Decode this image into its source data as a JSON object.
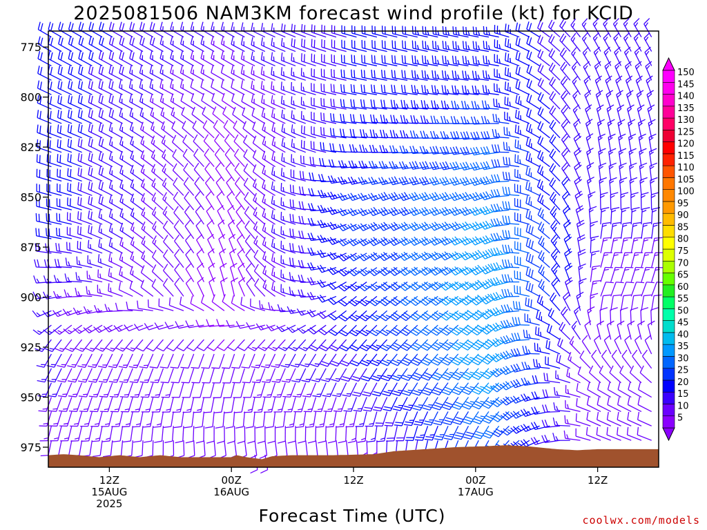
{
  "title": "2025081506 NAM3KM forecast wind profile (kt) for KCID",
  "xlabel": "Forecast Time (UTC)",
  "credit": "coolwx.com/models",
  "chart_data": {
    "type": "wind-barb-timeheight",
    "title": "2025081506 NAM3KM forecast wind profile (kt) for KCID",
    "xlabel": "Forecast Time (UTC)",
    "ylabel": "",
    "y_axis": {
      "inverted": true,
      "range": [
        767,
        985
      ],
      "ticks": [
        775,
        800,
        825,
        850,
        875,
        900,
        925,
        950,
        975
      ]
    },
    "x_axis": {
      "range_hours": [
        0,
        60
      ],
      "ticks": [
        {
          "hour": 6,
          "labels": [
            "12Z",
            "15AUG",
            "2025"
          ]
        },
        {
          "hour": 18,
          "labels": [
            "00Z",
            "16AUG"
          ]
        },
        {
          "hour": 30,
          "labels": [
            "12Z"
          ]
        },
        {
          "hour": 42,
          "labels": [
            "00Z",
            "17AUG"
          ]
        },
        {
          "hour": 54,
          "labels": [
            "12Z"
          ]
        }
      ]
    },
    "colorbar": {
      "unit": "kt",
      "levels": [
        5,
        10,
        15,
        20,
        25,
        30,
        35,
        40,
        45,
        50,
        55,
        60,
        65,
        70,
        75,
        80,
        85,
        90,
        95,
        100,
        105,
        110,
        115,
        120,
        125,
        130,
        135,
        140,
        145,
        150
      ],
      "colors": [
        "#8b00ff",
        "#6b00ff",
        "#3a00ff",
        "#0000ff",
        "#0033ff",
        "#0066ff",
        "#0099ff",
        "#00bbee",
        "#00ddcc",
        "#00ffaa",
        "#00ff66",
        "#22ee22",
        "#66ff00",
        "#aaff00",
        "#ddff00",
        "#ffff00",
        "#ffdd00",
        "#ffbb00",
        "#ff9900",
        "#ff8800",
        "#ff7700",
        "#ff5500",
        "#ff2200",
        "#ff0000",
        "#ee0033",
        "#ff0066",
        "#ff0099",
        "#ff00cc",
        "#ff00ee",
        "#ff00ff"
      ]
    },
    "terrain": {
      "color": "#a0522d",
      "surface_pressure_by_hour": [
        [
          0,
          979
        ],
        [
          1.5,
          978.5
        ],
        [
          3,
          979
        ],
        [
          5,
          980
        ],
        [
          7,
          979
        ],
        [
          9,
          980
        ],
        [
          11,
          979
        ],
        [
          13,
          980
        ],
        [
          18,
          980
        ],
        [
          18.5,
          979
        ],
        [
          19.5,
          980
        ],
        [
          21,
          981
        ],
        [
          22,
          979.5
        ],
        [
          24,
          979
        ],
        [
          28,
          979
        ],
        [
          32,
          978.5
        ],
        [
          34,
          977
        ],
        [
          37,
          976
        ],
        [
          40,
          975
        ],
        [
          43,
          974.5
        ],
        [
          45,
          974
        ],
        [
          47,
          974.5
        ],
        [
          50,
          976
        ],
        [
          52,
          976.5
        ],
        [
          54,
          976
        ],
        [
          57,
          976
        ],
        [
          60,
          976
        ]
      ]
    },
    "wind_barbs": {
      "time_step_hours": 1,
      "note": "barb direction (deg from) and speed (kt) vary by level and forecast hour; low-level SE flow turning to NW aloft; peak low-level jet ~35-45 kt near hours 40-46 at 850-950 hPa",
      "sample_profiles": [
        {
          "hour": 2,
          "levels": [
            775,
            800,
            825,
            850,
            875,
            900,
            925,
            950,
            975
          ],
          "dir": [
            300,
            295,
            290,
            285,
            280,
            260,
            210,
            200,
            190
          ],
          "spd": [
            22,
            22,
            22,
            22,
            20,
            15,
            15,
            15,
            12
          ]
        },
        {
          "hour": 18,
          "levels": [
            775,
            800,
            825,
            850,
            875,
            900,
            925,
            950,
            975
          ],
          "dir": [
            300,
            300,
            320,
            330,
            340,
            350,
            200,
            190,
            170
          ],
          "spd": [
            15,
            10,
            8,
            8,
            8,
            8,
            10,
            12,
            10
          ]
        },
        {
          "hour": 30,
          "levels": [
            775,
            800,
            825,
            850,
            875,
            900,
            925,
            950,
            975
          ],
          "dir": [
            285,
            280,
            275,
            250,
            240,
            230,
            220,
            200,
            170
          ],
          "spd": [
            20,
            20,
            22,
            25,
            25,
            22,
            20,
            15,
            10
          ]
        },
        {
          "hour": 44,
          "levels": [
            775,
            800,
            825,
            850,
            875,
            900,
            925,
            950,
            975
          ],
          "dir": [
            280,
            275,
            260,
            250,
            245,
            235,
            225,
            220,
            210
          ],
          "spd": [
            25,
            25,
            30,
            35,
            38,
            40,
            40,
            35,
            30
          ]
        },
        {
          "hour": 54,
          "levels": [
            775,
            800,
            825,
            850,
            875,
            900,
            925,
            950,
            975
          ],
          "dir": [
            330,
            340,
            350,
            355,
            10,
            20,
            340,
            300,
            290
          ],
          "spd": [
            15,
            15,
            15,
            15,
            15,
            12,
            10,
            10,
            10
          ]
        }
      ]
    }
  }
}
